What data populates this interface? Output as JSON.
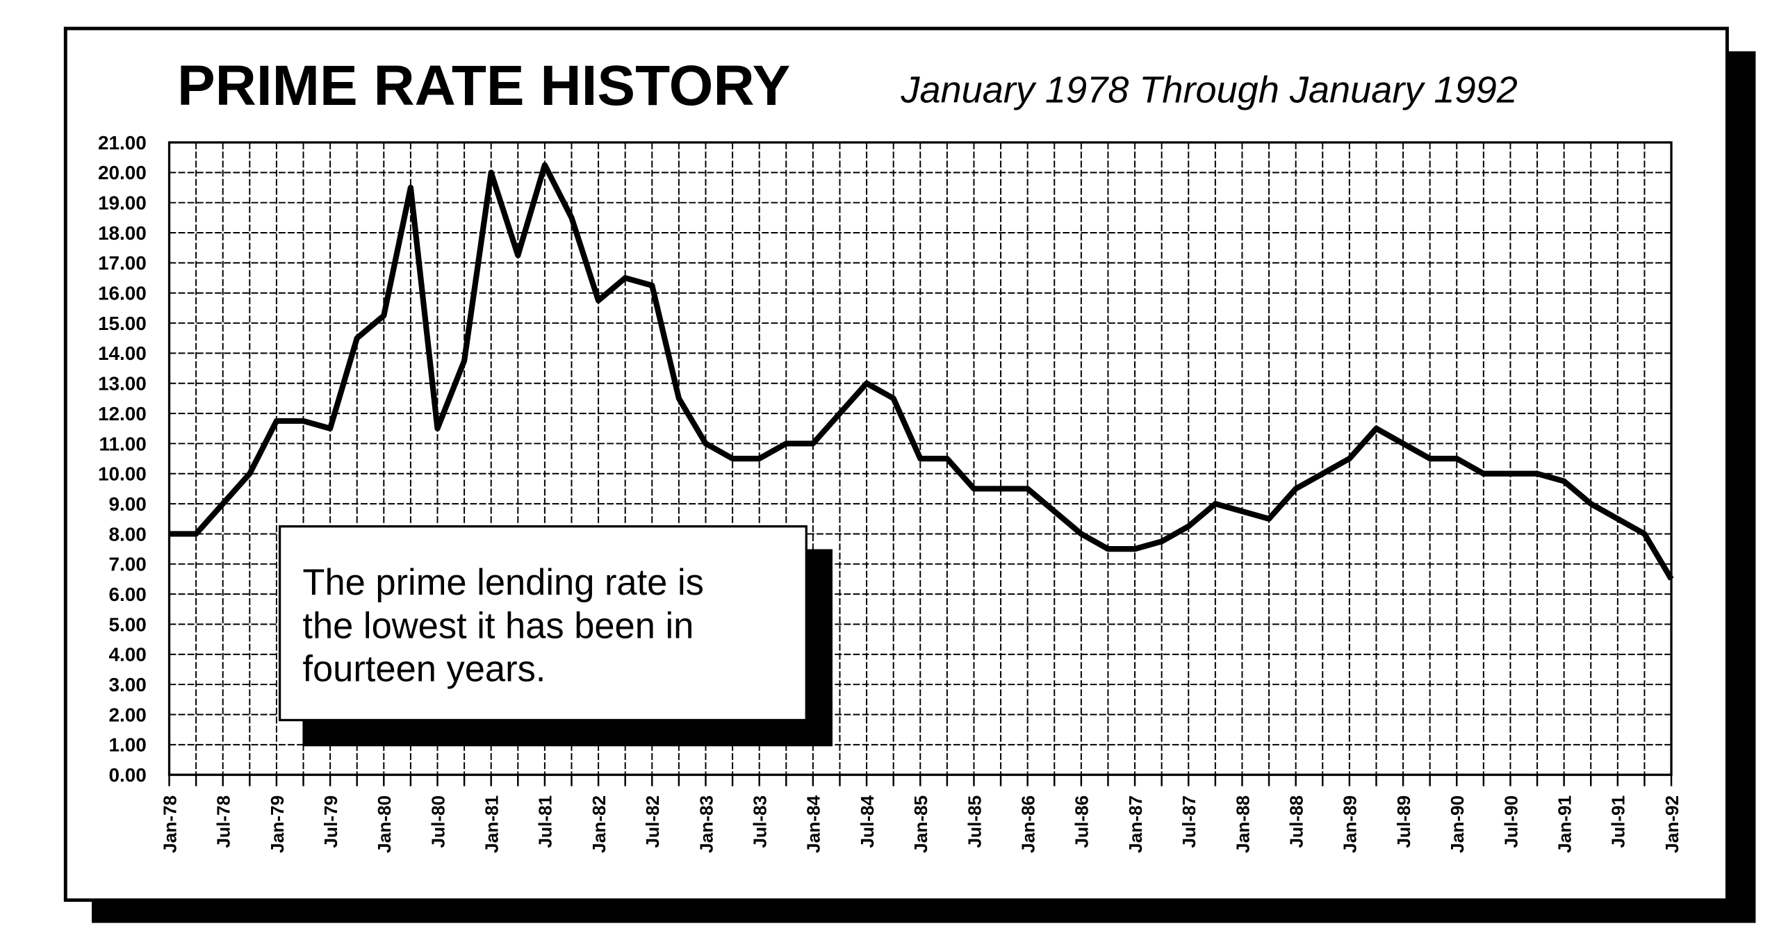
{
  "chart_data": {
    "type": "line",
    "title": "PRIME RATE HISTORY",
    "subtitle": "January 1978 Through January 1992",
    "annotation": [
      "The prime lending rate is",
      "the lowest it has been in",
      "fourteen years."
    ],
    "categories": [
      "Jan-78",
      null,
      "Jul-78",
      null,
      "Jan-79",
      null,
      "Jul-79",
      null,
      "Jan-80",
      null,
      "Jul-80",
      null,
      "Jan-81",
      null,
      "Jul-81",
      null,
      "Jan-82",
      null,
      "Jul-82",
      null,
      "Jan-83",
      null,
      "Jul-83",
      null,
      "Jan-84",
      null,
      "Jul-84",
      null,
      "Jan-85",
      null,
      "Jul-85",
      null,
      "Jan-86",
      null,
      "Jul-86",
      null,
      "Jan-87",
      null,
      "Jul-87",
      null,
      "Jan-88",
      null,
      "Jul-88",
      null,
      "Jan-89",
      null,
      "Jul-89",
      null,
      "Jan-90",
      null,
      "Jul-90",
      null,
      "Jan-91",
      null,
      "Jul-91",
      null,
      "Jan-92"
    ],
    "values": [
      8.0,
      8.0,
      9.0,
      10.0,
      11.75,
      11.75,
      11.5,
      14.5,
      15.25,
      19.5,
      11.5,
      13.75,
      20.0,
      17.25,
      20.25,
      18.5,
      15.75,
      16.5,
      16.25,
      12.5,
      11.0,
      10.5,
      10.5,
      11.0,
      11.0,
      12.0,
      13.0,
      12.5,
      10.5,
      10.5,
      9.5,
      9.5,
      9.5,
      8.75,
      8.0,
      7.5,
      7.5,
      7.75,
      8.25,
      9.0,
      8.75,
      8.5,
      9.5,
      10.0,
      10.5,
      11.5,
      11.0,
      10.5,
      10.5,
      10.0,
      10.0,
      10.0,
      9.75,
      9.0,
      8.5,
      8.0,
      6.5
    ],
    "color": "#000000",
    "ylim": [
      0,
      21
    ],
    "yticks": [
      {
        "value": 0,
        "label": "0.00"
      },
      {
        "value": 1,
        "label": "1.00"
      },
      {
        "value": 2,
        "label": "2.00"
      },
      {
        "value": 3,
        "label": "3.00"
      },
      {
        "value": 4,
        "label": "4.00"
      },
      {
        "value": 5,
        "label": "5.00"
      },
      {
        "value": 6,
        "label": "6.00"
      },
      {
        "value": 7,
        "label": "7.00"
      },
      {
        "value": 8,
        "label": "8.00"
      },
      {
        "value": 9,
        "label": "9.00"
      },
      {
        "value": 10,
        "label": "10.00"
      },
      {
        "value": 11,
        "label": "11.00"
      },
      {
        "value": 12,
        "label": "12.00"
      },
      {
        "value": 13,
        "label": "13.00"
      },
      {
        "value": 14,
        "label": "14.00"
      },
      {
        "value": 15,
        "label": "15.00"
      },
      {
        "value": 16,
        "label": "16.00"
      },
      {
        "value": 17,
        "label": "17.00"
      },
      {
        "value": 18,
        "label": "18.00"
      },
      {
        "value": 19,
        "label": "19.00"
      },
      {
        "value": 20,
        "label": "20.00"
      },
      {
        "value": 21,
        "label": "21.00"
      }
    ],
    "grid": true
  }
}
